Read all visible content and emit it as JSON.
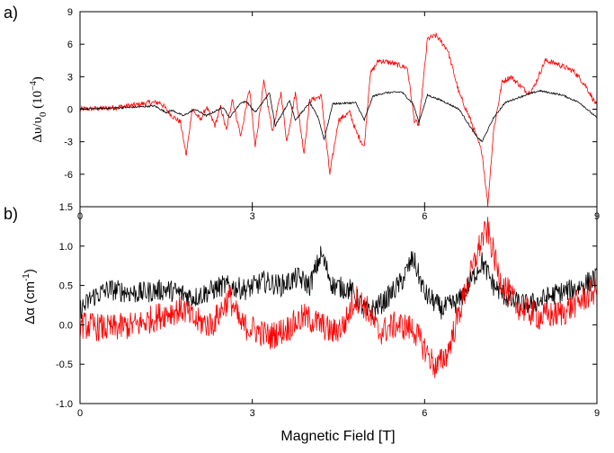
{
  "xlabel": "Magnetic Field [T]",
  "panel_a": {
    "label": "a)",
    "ylabel_main": "Δυ/υ",
    "ylabel_sub": "0",
    "ylabel_unit": "(10",
    "ylabel_exp": "−4",
    "ylabel_close": ")"
  },
  "panel_b": {
    "label": "b)",
    "ylabel_main": "Δα (cm",
    "ylabel_exp": "-1",
    "ylabel_close": ")"
  },
  "colors": {
    "red": "#ff0000",
    "black": "#000000"
  },
  "chart_data": [
    {
      "type": "line",
      "panel": "a)",
      "xlim": [
        0,
        9
      ],
      "ylim": [
        -9,
        9
      ],
      "x_ticks": [
        "0",
        "3",
        "6",
        "9"
      ],
      "y_ticks": [
        "-6",
        "-3",
        "0",
        "3",
        "6",
        "9"
      ],
      "series": [
        {
          "color": "#ff0000",
          "noise": 0.25,
          "points": [
            [
              0,
              0
            ],
            [
              0.5,
              0.1
            ],
            [
              1.0,
              0.4
            ],
            [
              1.2,
              0.6
            ],
            [
              1.4,
              0.6
            ],
            [
              1.6,
              -0.6
            ],
            [
              1.75,
              -1.2
            ],
            [
              1.85,
              -4.3
            ],
            [
              1.95,
              0.0
            ],
            [
              2.1,
              -1.0
            ],
            [
              2.2,
              0.2
            ],
            [
              2.35,
              -1.5
            ],
            [
              2.45,
              0.2
            ],
            [
              2.55,
              -2.0
            ],
            [
              2.65,
              1.0
            ],
            [
              2.8,
              -2.5
            ],
            [
              2.95,
              1.9
            ],
            [
              3.05,
              -3.5
            ],
            [
              3.2,
              2.5
            ],
            [
              3.35,
              -2.0
            ],
            [
              3.5,
              1.5
            ],
            [
              3.6,
              -3.0
            ],
            [
              3.75,
              1.5
            ],
            [
              3.9,
              -4.0
            ],
            [
              4.0,
              0.8
            ],
            [
              4.2,
              1.2
            ],
            [
              4.35,
              -6.0
            ],
            [
              4.5,
              -1.0
            ],
            [
              4.7,
              -0.3
            ],
            [
              4.8,
              -2.0
            ],
            [
              4.95,
              -3.5
            ],
            [
              5.05,
              3.2
            ],
            [
              5.2,
              4.5
            ],
            [
              5.4,
              4.3
            ],
            [
              5.7,
              3.8
            ],
            [
              5.82,
              -1.0
            ],
            [
              5.9,
              -1.5
            ],
            [
              6.05,
              6.5
            ],
            [
              6.2,
              6.8
            ],
            [
              6.4,
              5.5
            ],
            [
              6.6,
              1.5
            ],
            [
              6.8,
              -1.0
            ],
            [
              7.0,
              -4.0
            ],
            [
              7.1,
              -8.8
            ],
            [
              7.2,
              -2.0
            ],
            [
              7.35,
              2.5
            ],
            [
              7.5,
              3.0
            ],
            [
              7.8,
              1.5
            ],
            [
              7.9,
              2.0
            ],
            [
              8.1,
              4.5
            ],
            [
              8.3,
              4.2
            ],
            [
              8.6,
              3.5
            ],
            [
              8.8,
              2.2
            ],
            [
              9.0,
              0.3
            ]
          ]
        },
        {
          "color": "#000000",
          "noise": 0.08,
          "points": [
            [
              0,
              0
            ],
            [
              1.0,
              0.2
            ],
            [
              1.3,
              0.3
            ],
            [
              1.5,
              -0.3
            ],
            [
              1.6,
              -0.1
            ],
            [
              1.8,
              -0.6
            ],
            [
              2.0,
              0.0
            ],
            [
              2.2,
              -0.6
            ],
            [
              2.5,
              0.2
            ],
            [
              2.6,
              -0.8
            ],
            [
              2.8,
              0.6
            ],
            [
              2.9,
              0.7
            ],
            [
              3.05,
              -0.3
            ],
            [
              3.3,
              1.5
            ],
            [
              3.4,
              -1.5
            ],
            [
              3.65,
              0.8
            ],
            [
              3.75,
              -1.0
            ],
            [
              4.0,
              0.6
            ],
            [
              4.15,
              -0.8
            ],
            [
              4.25,
              -2.8
            ],
            [
              4.4,
              0.5
            ],
            [
              4.8,
              0.6
            ],
            [
              4.95,
              -1.0
            ],
            [
              5.1,
              1.2
            ],
            [
              5.3,
              1.5
            ],
            [
              5.6,
              1.6
            ],
            [
              5.8,
              0.5
            ],
            [
              5.9,
              -1.2
            ],
            [
              6.05,
              1.3
            ],
            [
              6.3,
              0.8
            ],
            [
              6.6,
              0.0
            ],
            [
              6.9,
              -2.5
            ],
            [
              7.0,
              -3.0
            ],
            [
              7.2,
              -0.8
            ],
            [
              7.4,
              0.6
            ],
            [
              7.7,
              1.2
            ],
            [
              8.0,
              1.7
            ],
            [
              8.4,
              1.3
            ],
            [
              8.7,
              0.6
            ],
            [
              9.0,
              -0.8
            ]
          ]
        }
      ]
    },
    {
      "type": "line",
      "panel": "b)",
      "xlim": [
        0,
        9
      ],
      "ylim": [
        -1.0,
        1.5
      ],
      "x_ticks": [
        "0",
        "3",
        "6",
        "9"
      ],
      "y_ticks": [
        "-1.0",
        "-0.5",
        "0.0",
        "0.5",
        "1.0",
        "1.5"
      ],
      "series": [
        {
          "color": "#000000",
          "noise": 0.14,
          "points": [
            [
              0,
              0.2
            ],
            [
              0.1,
              0.25
            ],
            [
              0.2,
              0.35
            ],
            [
              0.35,
              0.4
            ],
            [
              0.5,
              0.45
            ],
            [
              1.0,
              0.4
            ],
            [
              1.5,
              0.45
            ],
            [
              2.0,
              0.35
            ],
            [
              2.5,
              0.5
            ],
            [
              2.9,
              0.45
            ],
            [
              3.2,
              0.55
            ],
            [
              3.5,
              0.5
            ],
            [
              3.8,
              0.6
            ],
            [
              4.0,
              0.5
            ],
            [
              4.2,
              0.9
            ],
            [
              4.4,
              0.5
            ],
            [
              4.7,
              0.45
            ],
            [
              5.0,
              0.15
            ],
            [
              5.3,
              0.3
            ],
            [
              5.6,
              0.55
            ],
            [
              5.8,
              0.85
            ],
            [
              6.0,
              0.4
            ],
            [
              6.3,
              0.2
            ],
            [
              6.6,
              0.3
            ],
            [
              6.8,
              0.55
            ],
            [
              7.0,
              0.8
            ],
            [
              7.2,
              0.5
            ],
            [
              7.5,
              0.3
            ],
            [
              7.8,
              0.25
            ],
            [
              8.0,
              0.3
            ],
            [
              8.3,
              0.4
            ],
            [
              8.6,
              0.45
            ],
            [
              9.0,
              0.6
            ]
          ]
        },
        {
          "color": "#ff0000",
          "noise": 0.18,
          "points": [
            [
              0,
              0.0
            ],
            [
              0.5,
              -0.05
            ],
            [
              1.0,
              0.0
            ],
            [
              1.5,
              0.15
            ],
            [
              1.8,
              0.2
            ],
            [
              2.0,
              0.05
            ],
            [
              2.3,
              0.0
            ],
            [
              2.6,
              0.35
            ],
            [
              2.8,
              0.0
            ],
            [
              3.0,
              -0.05
            ],
            [
              3.3,
              -0.15
            ],
            [
              3.6,
              -0.05
            ],
            [
              3.9,
              0.1
            ],
            [
              4.2,
              0.0
            ],
            [
              4.4,
              -0.1
            ],
            [
              4.6,
              0.0
            ],
            [
              4.8,
              0.35
            ],
            [
              5.0,
              0.2
            ],
            [
              5.2,
              -0.1
            ],
            [
              5.5,
              0.0
            ],
            [
              5.8,
              -0.05
            ],
            [
              6.0,
              -0.3
            ],
            [
              6.2,
              -0.55
            ],
            [
              6.4,
              -0.35
            ],
            [
              6.7,
              0.4
            ],
            [
              7.0,
              1.1
            ],
            [
              7.1,
              1.2
            ],
            [
              7.3,
              0.6
            ],
            [
              7.6,
              0.25
            ],
            [
              8.0,
              0.1
            ],
            [
              8.4,
              0.15
            ],
            [
              8.7,
              0.3
            ],
            [
              9.0,
              0.45
            ]
          ]
        }
      ]
    }
  ]
}
